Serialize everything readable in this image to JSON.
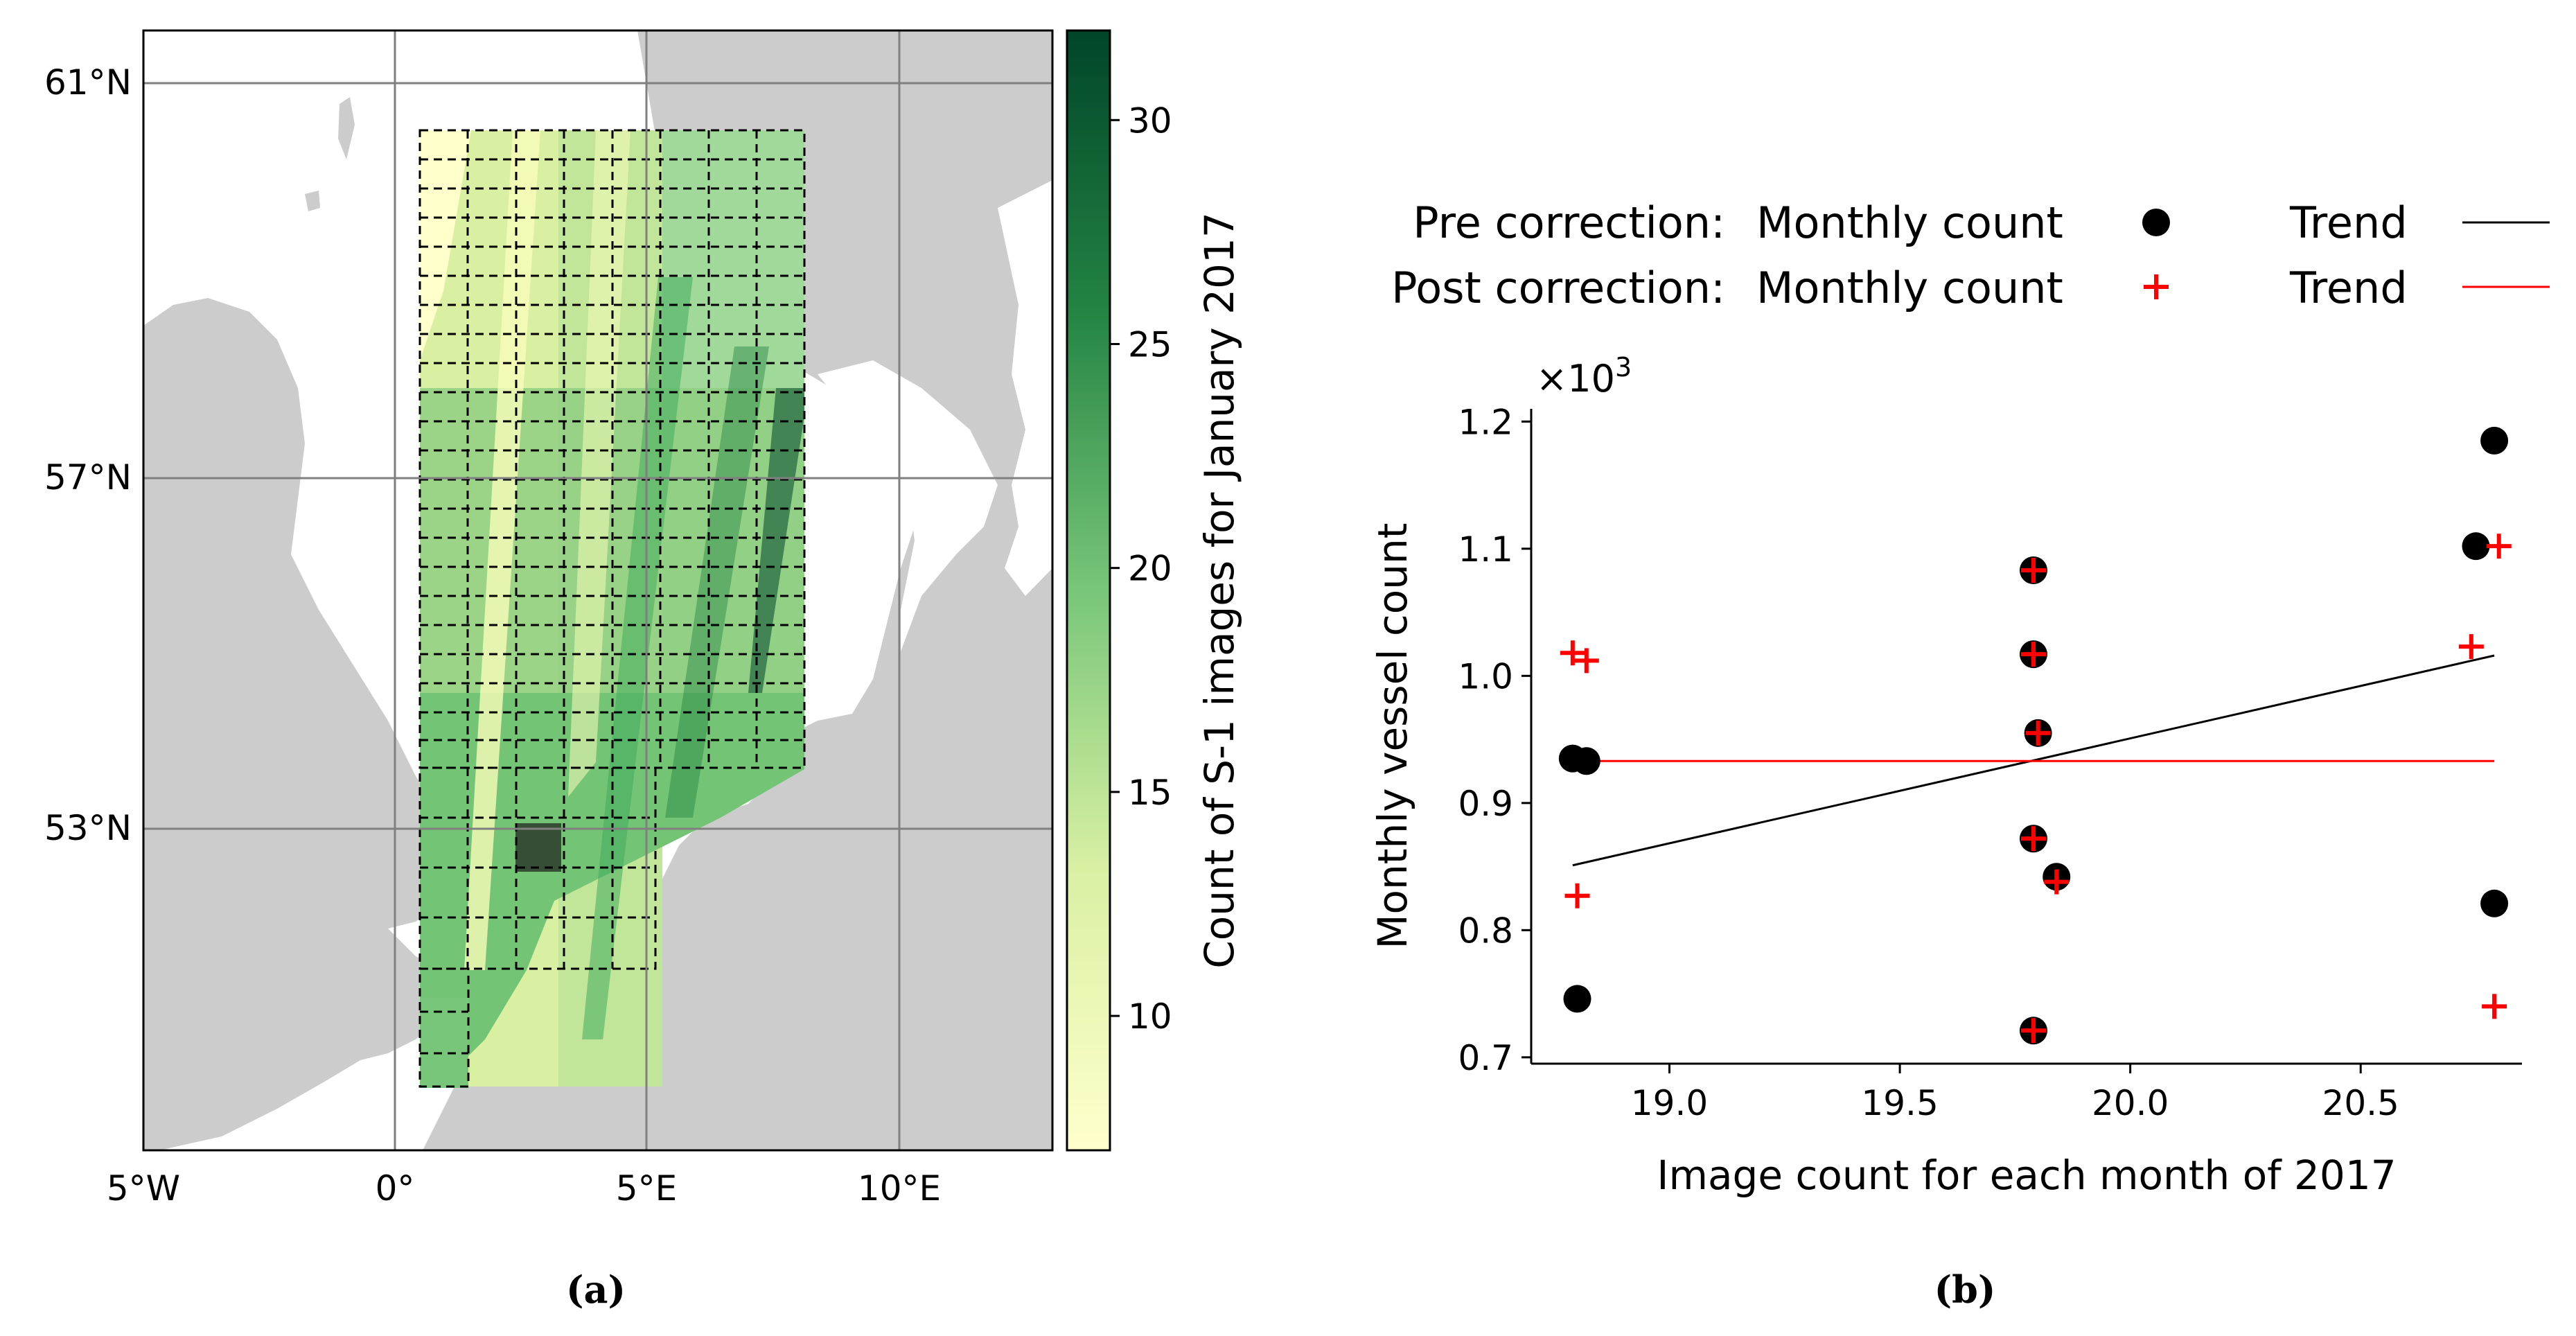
{
  "panel_a": {
    "caption": "(a)",
    "lat_ticks": [
      "61°N",
      "57°N",
      "53°N"
    ],
    "lon_ticks": [
      "5°W",
      "0°",
      "5°E",
      "10°E"
    ],
    "colorbar": {
      "label": "Count of S-1 images for January 2017",
      "ticks": [
        10,
        15,
        20,
        25,
        30
      ],
      "min": 7,
      "max": 32
    },
    "colors": {
      "land": "#cccccc",
      "cmap_low": "#f7fcb9",
      "cmap_high": "#004529"
    }
  },
  "chart_data": {
    "type": "scatter",
    "caption": "(b)",
    "xlabel": "Image count for each month of 2017",
    "ylabel": "Monthly vessel count",
    "y_multiplier": "×10",
    "y_multiplier_exp": "3",
    "xlim": [
      18.7,
      20.85
    ],
    "ylim": [
      0.695,
      1.21
    ],
    "xticks": [
      19.0,
      19.5,
      20.0,
      20.5
    ],
    "xtick_labels": [
      "19.0",
      "19.5",
      "20.0",
      "20.5"
    ],
    "yticks": [
      0.7,
      0.8,
      0.9,
      1.0,
      1.1,
      1.2
    ],
    "ytick_labels": [
      "0.7",
      "0.8",
      "0.9",
      "1.0",
      "1.1",
      "1.2"
    ],
    "legend": {
      "pre_label": "Pre correction:",
      "post_label": "Post correction:",
      "count_label": "Monthly count",
      "trend_label": "Trend"
    },
    "series": [
      {
        "name": "Pre correction: Monthly count",
        "marker": "circle",
        "color": "#000000",
        "x": [
          18.79,
          18.82,
          18.8,
          19.79,
          19.79,
          19.8,
          19.79,
          19.84,
          19.79,
          20.75,
          20.79,
          20.79
        ],
        "y": [
          0.935,
          0.933,
          0.746,
          1.083,
          1.017,
          0.955,
          0.872,
          0.842,
          0.721,
          1.102,
          1.185,
          0.821
        ]
      },
      {
        "name": "Post correction: Monthly count",
        "marker": "plus",
        "color": "#ff0000",
        "x": [
          18.79,
          18.82,
          18.8,
          19.79,
          19.79,
          19.8,
          19.79,
          19.84,
          19.79,
          20.74,
          20.8,
          20.79
        ],
        "y": [
          1.018,
          1.012,
          0.827,
          1.083,
          1.017,
          0.955,
          0.872,
          0.838,
          0.721,
          1.023,
          1.102,
          0.74
        ]
      },
      {
        "name": "Pre correction: Trend",
        "type": "line",
        "color": "#000000",
        "x": [
          18.79,
          20.79
        ],
        "y": [
          0.851,
          1.016
        ]
      },
      {
        "name": "Post correction: Trend",
        "type": "line",
        "color": "#ff0000",
        "x": [
          18.79,
          20.79
        ],
        "y": [
          0.933,
          0.933
        ]
      }
    ]
  }
}
